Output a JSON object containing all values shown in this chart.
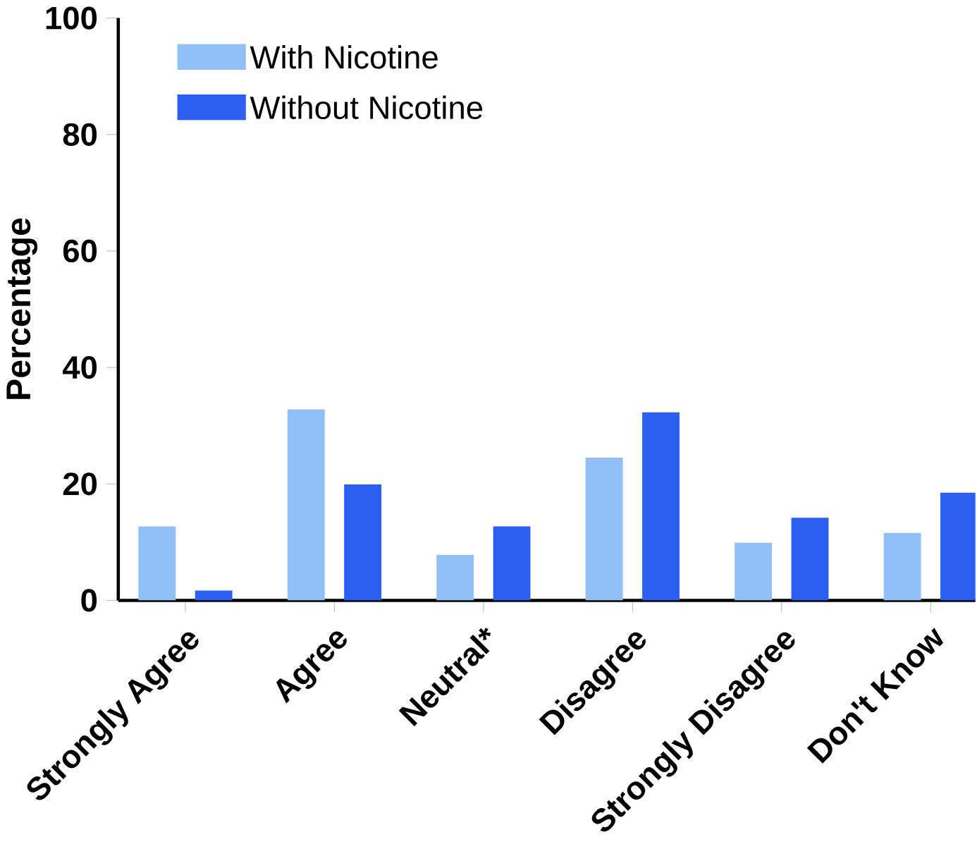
{
  "chart_data": {
    "type": "bar",
    "ylabel": "Percentage",
    "categories": [
      "Strongly Agree",
      "Agree",
      "Neutral*",
      "Disagree",
      "Strongly Disagree",
      "Don't Know"
    ],
    "series": [
      {
        "name": "With Nicotine",
        "color": "#93bff8",
        "values": [
          12.7,
          32.8,
          7.8,
          24.5,
          9.9,
          11.6
        ]
      },
      {
        "name": "Without Nicotine",
        "color": "#2a5ff2",
        "values": [
          1.7,
          19.9,
          12.7,
          32.3,
          14.2,
          18.5
        ]
      }
    ],
    "ylim": [
      0,
      100
    ],
    "yticks": [
      0,
      20,
      40,
      60,
      80,
      100
    ],
    "grid": false,
    "legend": "top left"
  }
}
